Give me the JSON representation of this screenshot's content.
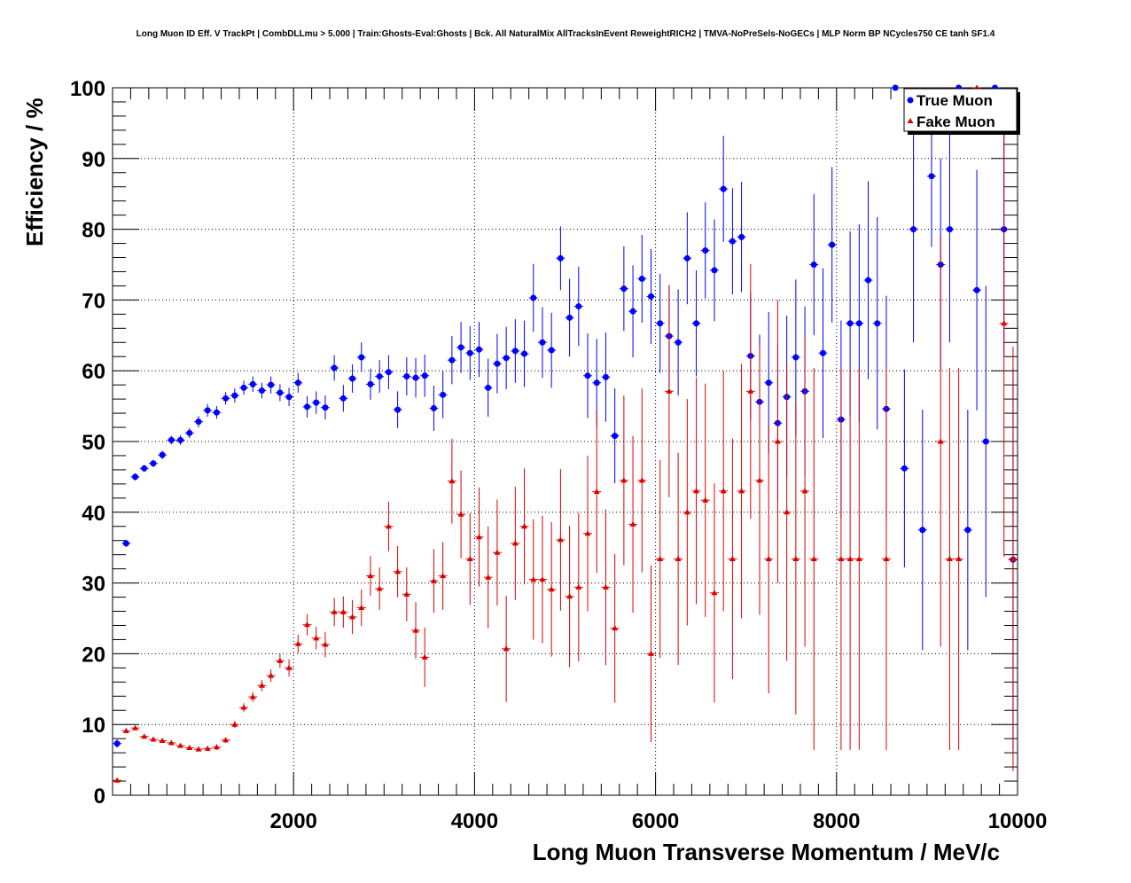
{
  "title": "Long Muon ID Eff. V TrackPt | CombDLLmu > 5.000 | Train:Ghosts-Eval:Ghosts | Bck. All NaturalMix AllTracksInEvent ReweightRICH2 | TMVA-NoPreSels-NoGECs | MLP Norm BP NCycles750 CE tanh SF1.4",
  "colors": {
    "true_muon": "#0000ff",
    "fake_muon": "#dd0000",
    "grid": "#000000",
    "frame": "#000000"
  },
  "chart_data": {
    "type": "scatter",
    "title": "Long Muon ID Eff. V TrackPt | CombDLLmu > 5.000 | Train:Ghosts-Eval:Ghosts | Bck. All NaturalMix AllTracksInEvent ReweightRICH2 | TMVA-NoPreSels-NoGECs | MLP Norm BP NCycles750 CE tanh SF1.4",
    "xlabel": "Long Muon Transverse Momentum / MeV/c",
    "ylabel": "Efficiency / %",
    "xlim": [
      0,
      10000
    ],
    "ylim": [
      0,
      100
    ],
    "xticks": [
      2000,
      4000,
      6000,
      8000,
      10000
    ],
    "xtick_labels": [
      "2000",
      "4000",
      "6000",
      "8000",
      "10000"
    ],
    "yticks": [
      0,
      10,
      20,
      30,
      40,
      50,
      60,
      70,
      80,
      90,
      100
    ],
    "ytick_labels": [
      "0",
      "10",
      "20",
      "30",
      "40",
      "50",
      "60",
      "70",
      "80",
      "90",
      "100"
    ],
    "grid": true,
    "legend_position": "top-right",
    "series": [
      {
        "name": "True Muon",
        "marker": "circle",
        "color": "#0000ff",
        "points": [
          {
            "x": 50,
            "y": 7.3,
            "err": 0.6
          },
          {
            "x": 150,
            "y": 35.6,
            "err": 0.5
          },
          {
            "x": 250,
            "y": 45.0,
            "err": 0.5
          },
          {
            "x": 350,
            "y": 46.2,
            "err": 0.5
          },
          {
            "x": 450,
            "y": 46.9,
            "err": 0.5
          },
          {
            "x": 550,
            "y": 48.1,
            "err": 0.6
          },
          {
            "x": 650,
            "y": 50.2,
            "err": 0.6
          },
          {
            "x": 750,
            "y": 50.2,
            "err": 0.7
          },
          {
            "x": 850,
            "y": 51.2,
            "err": 0.7
          },
          {
            "x": 950,
            "y": 52.8,
            "err": 0.8
          },
          {
            "x": 1050,
            "y": 54.4,
            "err": 0.9
          },
          {
            "x": 1150,
            "y": 54.1,
            "err": 0.9
          },
          {
            "x": 1250,
            "y": 56.1,
            "err": 0.9
          },
          {
            "x": 1350,
            "y": 56.5,
            "err": 1.0
          },
          {
            "x": 1450,
            "y": 57.6,
            "err": 1.0
          },
          {
            "x": 1550,
            "y": 58.1,
            "err": 1.1
          },
          {
            "x": 1650,
            "y": 57.2,
            "err": 1.1
          },
          {
            "x": 1750,
            "y": 58.0,
            "err": 1.2
          },
          {
            "x": 1850,
            "y": 56.9,
            "err": 1.2
          },
          {
            "x": 1950,
            "y": 56.3,
            "err": 1.3
          },
          {
            "x": 2050,
            "y": 58.3,
            "err": 1.4
          },
          {
            "x": 2150,
            "y": 54.9,
            "err": 1.5
          },
          {
            "x": 2250,
            "y": 55.5,
            "err": 1.6
          },
          {
            "x": 2350,
            "y": 54.8,
            "err": 1.7
          },
          {
            "x": 2450,
            "y": 60.4,
            "err": 1.8
          },
          {
            "x": 2550,
            "y": 56.1,
            "err": 1.9
          },
          {
            "x": 2650,
            "y": 58.9,
            "err": 2.0
          },
          {
            "x": 2750,
            "y": 61.9,
            "err": 2.1
          },
          {
            "x": 2850,
            "y": 58.1,
            "err": 2.2
          },
          {
            "x": 2950,
            "y": 59.2,
            "err": 2.3
          },
          {
            "x": 3050,
            "y": 59.8,
            "err": 2.4
          },
          {
            "x": 3150,
            "y": 54.5,
            "err": 2.6
          },
          {
            "x": 3250,
            "y": 59.2,
            "err": 2.7
          },
          {
            "x": 3350,
            "y": 59.0,
            "err": 2.8
          },
          {
            "x": 3450,
            "y": 59.3,
            "err": 3.0
          },
          {
            "x": 3550,
            "y": 54.7,
            "err": 3.2
          },
          {
            "x": 3650,
            "y": 56.6,
            "err": 3.3
          },
          {
            "x": 3750,
            "y": 61.5,
            "err": 3.4
          },
          {
            "x": 3850,
            "y": 63.3,
            "err": 3.6
          },
          {
            "x": 3950,
            "y": 62.5,
            "err": 3.8
          },
          {
            "x": 4050,
            "y": 63.0,
            "err": 3.9
          },
          {
            "x": 4150,
            "y": 57.6,
            "err": 4.1
          },
          {
            "x": 4250,
            "y": 61.0,
            "err": 4.2
          },
          {
            "x": 4350,
            "y": 61.8,
            "err": 4.4
          },
          {
            "x": 4450,
            "y": 62.8,
            "err": 4.5
          },
          {
            "x": 4550,
            "y": 62.4,
            "err": 4.7
          },
          {
            "x": 4650,
            "y": 70.3,
            "err": 4.8
          },
          {
            "x": 4750,
            "y": 64.0,
            "err": 5.0
          },
          {
            "x": 4850,
            "y": 62.9,
            "err": 5.3
          },
          {
            "x": 4950,
            "y": 75.9,
            "err": 4.5
          },
          {
            "x": 5050,
            "y": 67.5,
            "err": 5.5
          },
          {
            "x": 5150,
            "y": 69.1,
            "err": 5.6
          },
          {
            "x": 5250,
            "y": 59.3,
            "err": 6.0
          },
          {
            "x": 5350,
            "y": 58.3,
            "err": 6.2
          },
          {
            "x": 5450,
            "y": 59.1,
            "err": 6.3
          },
          {
            "x": 5550,
            "y": 50.8,
            "err": 6.7
          },
          {
            "x": 5650,
            "y": 71.6,
            "err": 6.0
          },
          {
            "x": 5750,
            "y": 68.4,
            "err": 6.5
          },
          {
            "x": 5850,
            "y": 73.0,
            "err": 6.2
          },
          {
            "x": 5950,
            "y": 70.5,
            "err": 6.7
          },
          {
            "x": 6050,
            "y": 66.7,
            "err": 7.0
          },
          {
            "x": 6150,
            "y": 64.9,
            "err": 7.2
          },
          {
            "x": 6250,
            "y": 64.0,
            "err": 7.5
          },
          {
            "x": 6350,
            "y": 75.9,
            "err": 6.5
          },
          {
            "x": 6450,
            "y": 66.7,
            "err": 7.5
          },
          {
            "x": 6550,
            "y": 77.0,
            "err": 6.8
          },
          {
            "x": 6650,
            "y": 74.2,
            "err": 7.2
          },
          {
            "x": 6750,
            "y": 85.7,
            "err": 7.5
          },
          {
            "x": 6850,
            "y": 78.3,
            "err": 7.5
          },
          {
            "x": 6950,
            "y": 78.9,
            "err": 7.8
          },
          {
            "x": 7050,
            "y": 62.1,
            "err": 9.0
          },
          {
            "x": 7150,
            "y": 55.6,
            "err": 9.5
          },
          {
            "x": 7250,
            "y": 58.3,
            "err": 10.0
          },
          {
            "x": 7350,
            "y": 52.6,
            "err": 11.0
          },
          {
            "x": 7450,
            "y": 56.3,
            "err": 11.5
          },
          {
            "x": 7550,
            "y": 61.9,
            "err": 11.0
          },
          {
            "x": 7650,
            "y": 57.1,
            "err": 12.0
          },
          {
            "x": 7750,
            "y": 75.0,
            "err": 10.0
          },
          {
            "x": 7850,
            "y": 62.5,
            "err": 12.0
          },
          {
            "x": 7950,
            "y": 77.8,
            "err": 11.0
          },
          {
            "x": 8050,
            "y": 53.1,
            "err": 14.0
          },
          {
            "x": 8150,
            "y": 66.7,
            "err": 13.0
          },
          {
            "x": 8250,
            "y": 66.7,
            "err": 14.0
          },
          {
            "x": 8350,
            "y": 72.8,
            "err": 14.0
          },
          {
            "x": 8450,
            "y": 66.7,
            "err": 15.0
          },
          {
            "x": 8550,
            "y": 54.6,
            "err": 16.0
          },
          {
            "x": 8650,
            "y": 100.0,
            "err": 0
          },
          {
            "x": 8750,
            "y": 46.2,
            "err": 14.0
          },
          {
            "x": 8850,
            "y": 80.0,
            "err": 16.0
          },
          {
            "x": 8950,
            "y": 37.5,
            "err": 17.0
          },
          {
            "x": 9050,
            "y": 87.5,
            "err": 10.0
          },
          {
            "x": 9150,
            "y": 75.0,
            "err": 15.0
          },
          {
            "x": 9250,
            "y": 80.0,
            "err": 16.0
          },
          {
            "x": 9350,
            "y": 100.0,
            "err": 0
          },
          {
            "x": 9450,
            "y": 37.5,
            "err": 17.0
          },
          {
            "x": 9550,
            "y": 71.4,
            "err": 17.0
          },
          {
            "x": 9650,
            "y": 50.0,
            "err": 22.0
          },
          {
            "x": 9750,
            "y": 100.0,
            "err": 0
          },
          {
            "x": 9850,
            "y": 80.0,
            "err": 18.0
          },
          {
            "x": 9950,
            "y": 33.3,
            "err": 27.0
          }
        ]
      },
      {
        "name": "Fake Muon",
        "marker": "triangle",
        "color": "#dd0000",
        "points": [
          {
            "x": 50,
            "y": 2.1,
            "err": 0.3
          },
          {
            "x": 150,
            "y": 9.1,
            "err": 0.3
          },
          {
            "x": 250,
            "y": 9.5,
            "err": 0.3
          },
          {
            "x": 350,
            "y": 8.3,
            "err": 0.3
          },
          {
            "x": 450,
            "y": 7.9,
            "err": 0.3
          },
          {
            "x": 550,
            "y": 7.7,
            "err": 0.3
          },
          {
            "x": 650,
            "y": 7.4,
            "err": 0.3
          },
          {
            "x": 750,
            "y": 7.0,
            "err": 0.3
          },
          {
            "x": 850,
            "y": 6.7,
            "err": 0.3
          },
          {
            "x": 950,
            "y": 6.5,
            "err": 0.3
          },
          {
            "x": 1050,
            "y": 6.6,
            "err": 0.3
          },
          {
            "x": 1150,
            "y": 6.8,
            "err": 0.4
          },
          {
            "x": 1250,
            "y": 7.8,
            "err": 0.4
          },
          {
            "x": 1350,
            "y": 10.0,
            "err": 0.5
          },
          {
            "x": 1450,
            "y": 12.4,
            "err": 0.6
          },
          {
            "x": 1550,
            "y": 13.9,
            "err": 0.7
          },
          {
            "x": 1650,
            "y": 15.5,
            "err": 0.8
          },
          {
            "x": 1750,
            "y": 16.9,
            "err": 0.9
          },
          {
            "x": 1850,
            "y": 19.0,
            "err": 1.0
          },
          {
            "x": 1950,
            "y": 18.0,
            "err": 1.2
          },
          {
            "x": 2050,
            "y": 21.4,
            "err": 1.3
          },
          {
            "x": 2150,
            "y": 24.1,
            "err": 1.5
          },
          {
            "x": 2250,
            "y": 22.2,
            "err": 1.6
          },
          {
            "x": 2350,
            "y": 21.3,
            "err": 1.8
          },
          {
            "x": 2450,
            "y": 25.9,
            "err": 2.0
          },
          {
            "x": 2550,
            "y": 25.9,
            "err": 2.2
          },
          {
            "x": 2650,
            "y": 25.2,
            "err": 2.4
          },
          {
            "x": 2750,
            "y": 26.5,
            "err": 2.6
          },
          {
            "x": 2850,
            "y": 31.0,
            "err": 2.8
          },
          {
            "x": 2950,
            "y": 29.2,
            "err": 3.0
          },
          {
            "x": 3050,
            "y": 38.0,
            "err": 3.5
          },
          {
            "x": 3150,
            "y": 31.6,
            "err": 3.6
          },
          {
            "x": 3250,
            "y": 28.4,
            "err": 3.8
          },
          {
            "x": 3350,
            "y": 23.3,
            "err": 4.0
          },
          {
            "x": 3450,
            "y": 19.5,
            "err": 4.2
          },
          {
            "x": 3550,
            "y": 30.3,
            "err": 4.5
          },
          {
            "x": 3650,
            "y": 31.0,
            "err": 4.8
          },
          {
            "x": 3750,
            "y": 44.4,
            "err": 6.0
          },
          {
            "x": 3850,
            "y": 39.7,
            "err": 6.2
          },
          {
            "x": 3950,
            "y": 33.4,
            "err": 6.5
          },
          {
            "x": 4050,
            "y": 36.5,
            "err": 7.0
          },
          {
            "x": 4150,
            "y": 30.8,
            "err": 7.2
          },
          {
            "x": 4250,
            "y": 34.3,
            "err": 7.5
          },
          {
            "x": 4350,
            "y": 20.7,
            "err": 7.5
          },
          {
            "x": 4450,
            "y": 35.6,
            "err": 8.0
          },
          {
            "x": 4550,
            "y": 38.0,
            "err": 8.2
          },
          {
            "x": 4650,
            "y": 30.5,
            "err": 8.5
          },
          {
            "x": 4750,
            "y": 30.5,
            "err": 9.0
          },
          {
            "x": 4850,
            "y": 29.1,
            "err": 9.5
          },
          {
            "x": 4950,
            "y": 36.1,
            "err": 10.0
          },
          {
            "x": 5050,
            "y": 28.1,
            "err": 10.0
          },
          {
            "x": 5150,
            "y": 29.4,
            "err": 10.5
          },
          {
            "x": 5250,
            "y": 37.0,
            "err": 11.0
          },
          {
            "x": 5350,
            "y": 42.9,
            "err": 11.5
          },
          {
            "x": 5450,
            "y": 29.4,
            "err": 11.0
          },
          {
            "x": 5550,
            "y": 23.6,
            "err": 10.5
          },
          {
            "x": 5650,
            "y": 44.5,
            "err": 12.0
          },
          {
            "x": 5750,
            "y": 38.3,
            "err": 12.5
          },
          {
            "x": 5850,
            "y": 44.5,
            "err": 13.0
          },
          {
            "x": 5950,
            "y": 20.0,
            "err": 12.5
          },
          {
            "x": 6050,
            "y": 33.4,
            "err": 14.0
          },
          {
            "x": 6150,
            "y": 57.1,
            "err": 15.0
          },
          {
            "x": 6250,
            "y": 33.4,
            "err": 15.0
          },
          {
            "x": 6350,
            "y": 40.0,
            "err": 16.0
          },
          {
            "x": 6450,
            "y": 43.0,
            "err": 16.0
          },
          {
            "x": 6550,
            "y": 41.7,
            "err": 16.5
          },
          {
            "x": 6650,
            "y": 28.6,
            "err": 15.5
          },
          {
            "x": 6750,
            "y": 43.0,
            "err": 17.0
          },
          {
            "x": 6850,
            "y": 33.4,
            "err": 17.0
          },
          {
            "x": 6950,
            "y": 43.0,
            "err": 18.0
          },
          {
            "x": 7050,
            "y": 57.1,
            "err": 18.0
          },
          {
            "x": 7150,
            "y": 44.5,
            "err": 19.0
          },
          {
            "x": 7250,
            "y": 33.4,
            "err": 19.0
          },
          {
            "x": 7350,
            "y": 50.0,
            "err": 20.0
          },
          {
            "x": 7450,
            "y": 40.0,
            "err": 21.0
          },
          {
            "x": 7550,
            "y": 33.4,
            "err": 22.0
          },
          {
            "x": 7650,
            "y": 43.0,
            "err": 22.0
          },
          {
            "x": 7750,
            "y": 33.4,
            "err": 27.0
          },
          {
            "x": 8050,
            "y": 33.4,
            "err": 27.0
          },
          {
            "x": 8150,
            "y": 33.4,
            "err": 27.0
          },
          {
            "x": 8250,
            "y": 33.4,
            "err": 27.0
          },
          {
            "x": 8550,
            "y": 33.4,
            "err": 27.0
          },
          {
            "x": 9150,
            "y": 50.0,
            "err": 29.0
          },
          {
            "x": 9250,
            "y": 33.4,
            "err": 27.0
          },
          {
            "x": 9350,
            "y": 33.4,
            "err": 27.0
          },
          {
            "x": 9550,
            "y": 100.0,
            "err": 0
          },
          {
            "x": 9850,
            "y": 66.7,
            "err": 33.0
          },
          {
            "x": 9950,
            "y": 33.4,
            "err": 30.0
          }
        ]
      }
    ]
  }
}
